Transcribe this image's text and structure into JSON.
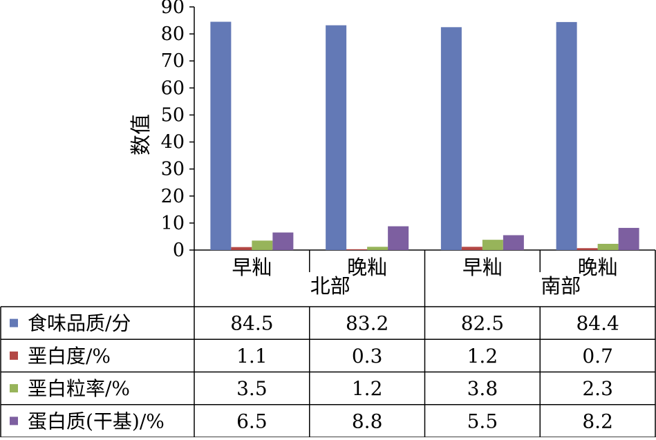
{
  "chart_data": {
    "type": "bar",
    "title": "",
    "xlabel": "",
    "ylabel": "数值",
    "ylim": [
      0,
      90
    ],
    "yticks": [
      0,
      10,
      20,
      30,
      40,
      50,
      60,
      70,
      80,
      90
    ],
    "groups": [
      {
        "label": "北部",
        "categories": [
          "早籼",
          "晚籼"
        ]
      },
      {
        "label": "南部",
        "categories": [
          "早籼",
          "晚籼"
        ]
      }
    ],
    "categories": [
      "早籼",
      "晚籼",
      "早籼",
      "晚籼"
    ],
    "series": [
      {
        "name": "食味品质/分",
        "color": "#6379B6",
        "values": [
          84.5,
          83.2,
          82.5,
          84.4
        ],
        "labels": [
          "84.5",
          "83.2",
          "82.5",
          "84.4"
        ]
      },
      {
        "name": "垩白度/%",
        "color": "#B34845",
        "values": [
          1.1,
          0.3,
          1.2,
          0.7
        ],
        "labels": [
          "1.1",
          "0.3",
          "1.2",
          "0.7"
        ]
      },
      {
        "name": "垩白粒率/%",
        "color": "#97B45A",
        "values": [
          3.5,
          1.2,
          3.8,
          2.3
        ],
        "labels": [
          "3.5",
          "1.2",
          "3.8",
          "2.3"
        ]
      },
      {
        "name": "蛋白质(干基)/%",
        "color": "#7D5FA0",
        "values": [
          6.5,
          8.8,
          5.5,
          8.2
        ],
        "labels": [
          "6.5",
          "8.8",
          "5.5",
          "8.2"
        ]
      }
    ],
    "grid": false,
    "legend": "data-table-left"
  }
}
